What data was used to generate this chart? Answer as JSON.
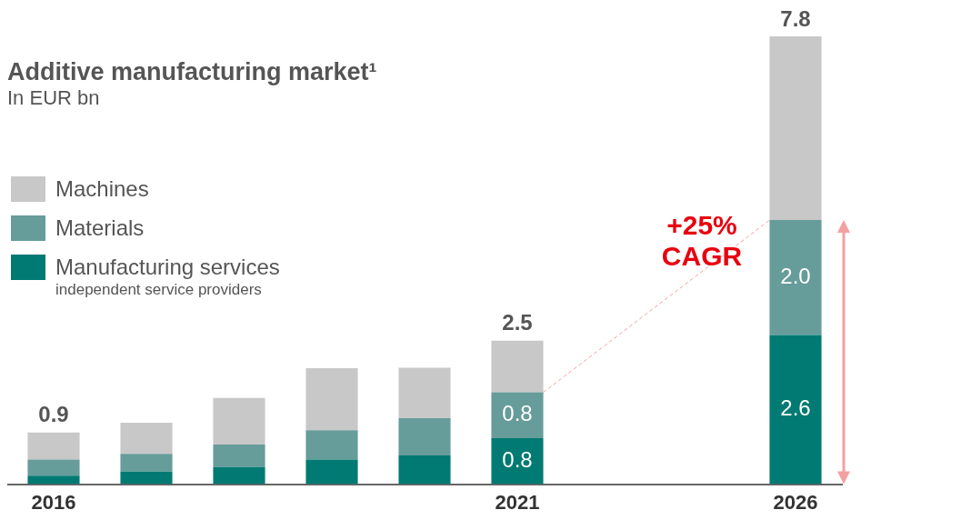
{
  "chart_data": {
    "type": "bar",
    "title": "Additive manufacturing market¹",
    "subtitle": "In EUR bn",
    "stacked": true,
    "categories": [
      "2016",
      null,
      null,
      null,
      null,
      "2021",
      null,
      null,
      "2026"
    ],
    "ylim": [
      0,
      7.8
    ],
    "grid": false,
    "legend": "top left",
    "tick_labels": "x",
    "series": [
      {
        "name": "Manufacturing services",
        "color": "#007a72",
        "values": [
          0.15,
          0.22,
          0.3,
          0.43,
          0.5,
          0.8,
          null,
          null,
          2.6
        ],
        "value_labels": [
          null,
          null,
          null,
          null,
          null,
          "0.8",
          null,
          null,
          "2.6"
        ]
      },
      {
        "name": "Materials",
        "color": "#669c9a",
        "values": [
          0.28,
          0.31,
          0.39,
          0.51,
          0.65,
          0.8,
          null,
          null,
          2.0
        ],
        "value_labels": [
          null,
          null,
          null,
          null,
          null,
          "0.8",
          null,
          null,
          "2.0"
        ]
      },
      {
        "name": "Machines",
        "color": "#c8c8c8",
        "values": [
          0.47,
          0.54,
          0.81,
          1.08,
          0.88,
          0.9,
          null,
          null,
          3.2
        ]
      }
    ],
    "totals": [
      "0.9",
      null,
      null,
      null,
      null,
      "2.5",
      null,
      null,
      "7.8"
    ],
    "annotations": [
      "+25% CAGR",
      "independent service providers"
    ]
  }
}
